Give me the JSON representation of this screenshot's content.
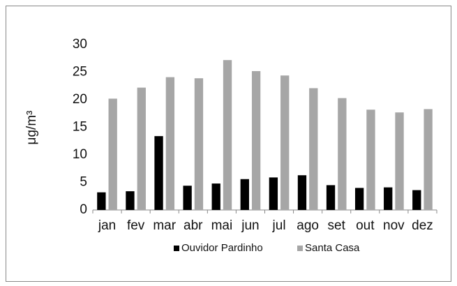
{
  "chart_data": {
    "type": "bar",
    "ylabel": "μg/m³",
    "categories": [
      "jan",
      "fev",
      "mar",
      "abr",
      "mai",
      "jun",
      "jul",
      "ago",
      "set",
      "out",
      "nov",
      "dez"
    ],
    "series": [
      {
        "name": "Ouvidor Pardinho",
        "color": "#000000",
        "values": [
          3.2,
          3.4,
          13.4,
          4.4,
          4.8,
          5.6,
          5.9,
          6.3,
          4.5,
          4.0,
          4.1,
          3.6
        ]
      },
      {
        "name": "Santa Casa",
        "color": "#a6a6a6",
        "values": [
          20.2,
          22.2,
          24.1,
          23.9,
          27.2,
          25.2,
          24.4,
          22.1,
          20.3,
          18.2,
          17.7,
          18.3
        ]
      }
    ],
    "ylim": [
      0,
      30
    ],
    "yticks": [
      0,
      5,
      10,
      15,
      20,
      25,
      30
    ],
    "grid": false,
    "legend": "bottom"
  }
}
